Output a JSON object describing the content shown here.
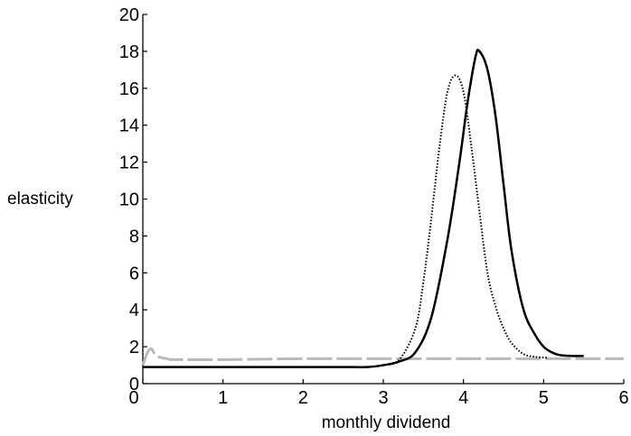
{
  "chart_data": {
    "type": "line",
    "xlabel": "monthly dividend",
    "ylabel": "elasticity",
    "xlim": [
      0,
      6
    ],
    "ylim": [
      0,
      20
    ],
    "x_ticks": [
      "0",
      "1",
      "2",
      "3",
      "4",
      "5",
      "6"
    ],
    "y_ticks": [
      "0",
      "2",
      "4",
      "6",
      "8",
      "10",
      "12",
      "14",
      "16",
      "18",
      "20"
    ],
    "grid": false,
    "legend": "none",
    "series": [
      {
        "style": "solid",
        "color": "#000000",
        "x": [
          0,
          0.5,
          1.0,
          1.5,
          2.0,
          2.5,
          2.8,
          3.0,
          3.2,
          3.4,
          3.6,
          3.8,
          3.95,
          4.05,
          4.15,
          4.2,
          4.3,
          4.4,
          4.5,
          4.6,
          4.75,
          4.9,
          5.0,
          5.1,
          5.2,
          5.35,
          5.5
        ],
        "y": [
          0.9,
          0.9,
          0.9,
          0.9,
          0.9,
          0.9,
          0.9,
          1.0,
          1.2,
          1.7,
          3.6,
          7.8,
          12.0,
          15.2,
          17.7,
          18.0,
          17.0,
          14.5,
          10.8,
          7.2,
          4.0,
          2.6,
          2.0,
          1.7,
          1.55,
          1.5,
          1.5
        ]
      },
      {
        "style": "dotted",
        "color": "#000000",
        "x": [
          3.0,
          3.2,
          3.4,
          3.5,
          3.6,
          3.7,
          3.8,
          3.9,
          4.0,
          4.1,
          4.2,
          4.3,
          4.4,
          4.5,
          4.6,
          4.75,
          4.9,
          5.05
        ],
        "y": [
          1.0,
          1.3,
          3.0,
          5.5,
          9.0,
          12.8,
          15.8,
          16.7,
          15.8,
          12.8,
          9.3,
          6.0,
          4.2,
          3.0,
          2.2,
          1.6,
          1.45,
          1.4
        ]
      },
      {
        "style": "dashed",
        "color": "#b9b9b9",
        "x": [
          0,
          0.05,
          0.1,
          0.15,
          0.2,
          0.3,
          0.4,
          1,
          2,
          3,
          4,
          5,
          6
        ],
        "y": [
          1.0,
          1.6,
          1.9,
          1.6,
          1.45,
          1.35,
          1.3,
          1.3,
          1.35,
          1.35,
          1.35,
          1.35,
          1.35
        ]
      }
    ]
  }
}
